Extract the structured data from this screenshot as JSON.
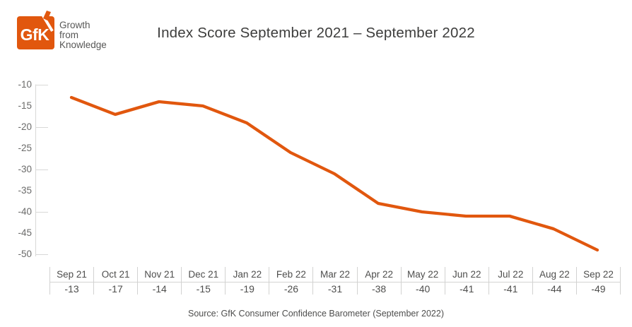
{
  "logo": {
    "mark_text": "GfK",
    "tagline": [
      "Growth",
      "from",
      "Knowledge"
    ],
    "brand_orange": "#e1570e"
  },
  "title": "Index Score September 2021 – September 2022",
  "source": "Source: GfK Consumer Confidence Barometer (September 2022)",
  "chart_data": {
    "type": "line",
    "title": "Index Score September 2021 – September 2022",
    "categories": [
      "Sep 21",
      "Oct 21",
      "Nov 21",
      "Dec 21",
      "Jan 22",
      "Feb 22",
      "Mar 22",
      "Apr 22",
      "May 22",
      "Jun 22",
      "Jul 22",
      "Aug 22",
      "Sep 22"
    ],
    "values": [
      -13,
      -17,
      -14,
      -15,
      -19,
      -26,
      -31,
      -38,
      -40,
      -41,
      -41,
      -44,
      -49
    ],
    "series_name": "GfK Consumer Confidence Barometer index score",
    "xlabel": "",
    "ylabel": "",
    "ylim": [
      -50,
      -10
    ],
    "y_tick_labels": [
      -10,
      -15,
      -20,
      -25,
      -30,
      -35,
      -40,
      -45,
      -50
    ],
    "y_major_ticks": [
      -10,
      -20,
      -30,
      -40,
      -50
    ],
    "grid": false,
    "legend": "none",
    "line_color": "#e1570e",
    "axis_color": "#d8d8d7",
    "value_row_shown": true
  }
}
